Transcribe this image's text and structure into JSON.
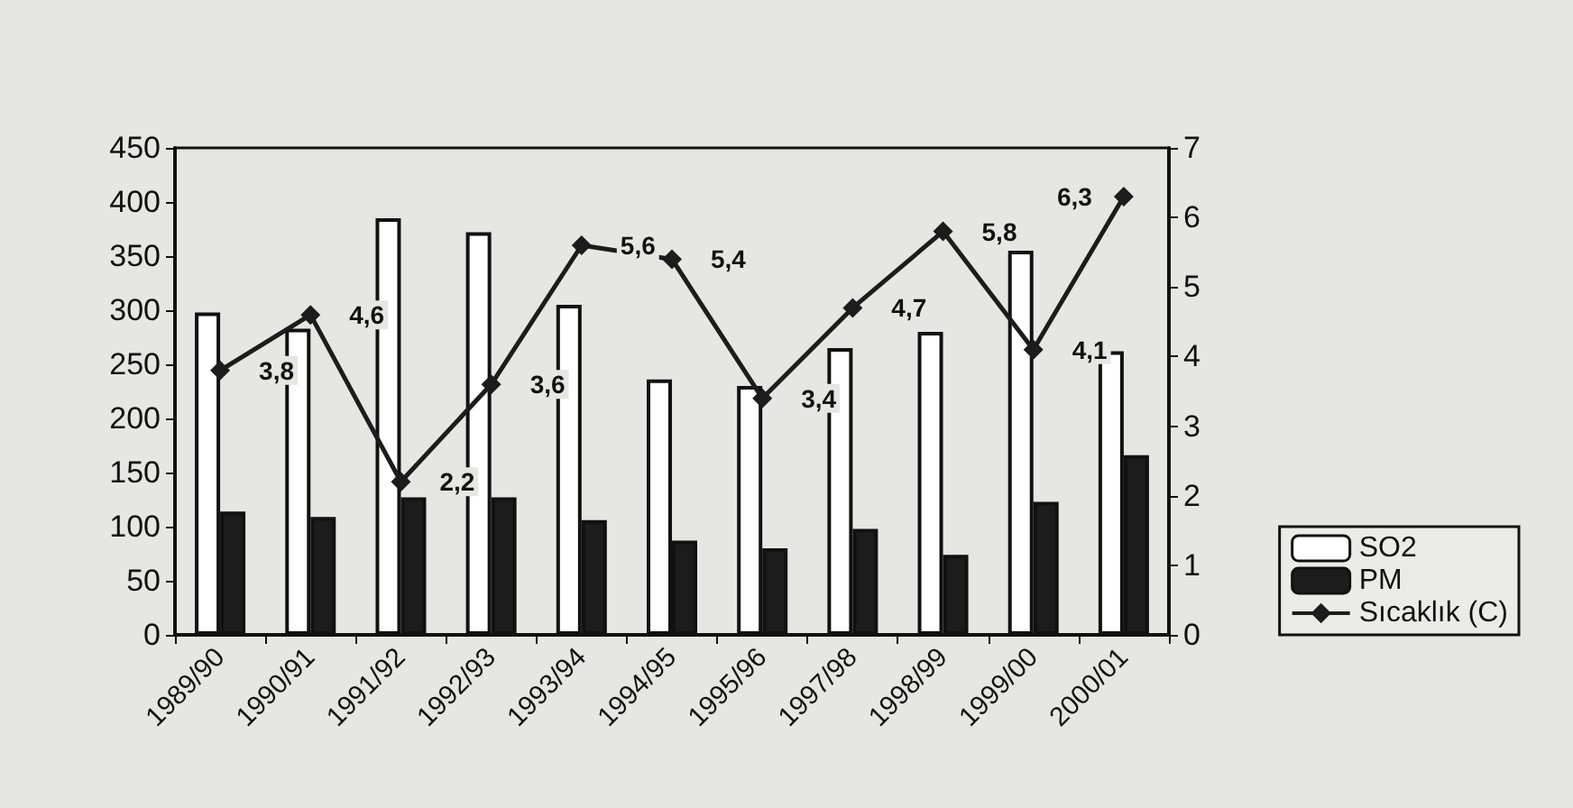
{
  "chart_data": {
    "type": "bar",
    "categories": [
      "1989/90",
      "1990/91",
      "1991/92",
      "1992/93",
      "1993/94",
      "1994/95",
      "1995/96",
      "1997/98",
      "1998/99",
      "1999/00",
      "2000/01"
    ],
    "series": [
      {
        "name": "SO2",
        "color": "#ffffff",
        "values": [
          298,
          283,
          385,
          372,
          305,
          236,
          230,
          265,
          280,
          355,
          262
        ]
      },
      {
        "name": "PM",
        "color": "#1c1c1c",
        "values": [
          114,
          109,
          127,
          127,
          106,
          87,
          80,
          98,
          74,
          123,
          166
        ]
      },
      {
        "name": "Sıcaklık (C)",
        "type": "line",
        "axis": "y2",
        "color": "#1c1c1c",
        "marker": "diamond",
        "values": [
          3.8,
          4.6,
          2.2,
          3.6,
          5.6,
          5.4,
          3.4,
          4.7,
          5.8,
          4.1,
          6.3
        ],
        "value_labels": [
          "3,8",
          "4,6",
          "2,2",
          "3,6",
          "5,6",
          "5,4",
          "3,4",
          "4,7",
          "5,8",
          "4,1",
          "6,3"
        ]
      }
    ],
    "ylim": [
      0,
      450
    ],
    "yticks": [
      0,
      50,
      100,
      150,
      200,
      250,
      300,
      350,
      400,
      450
    ],
    "y2lim": [
      0,
      7
    ],
    "y2ticks": [
      0,
      1,
      2,
      3,
      4,
      5,
      6,
      7
    ],
    "grid": false,
    "legend": "bottom right"
  }
}
